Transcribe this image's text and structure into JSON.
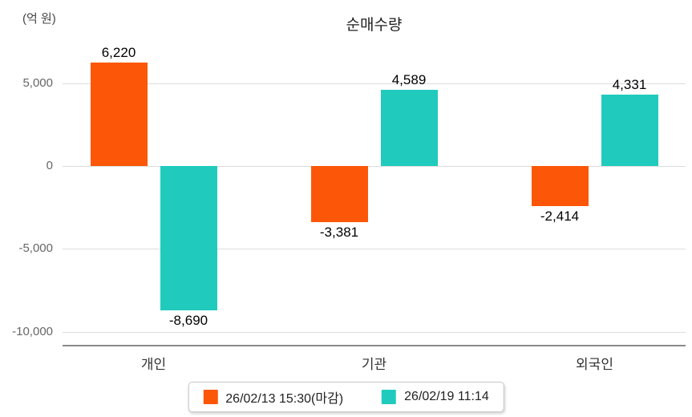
{
  "chart_data": {
    "type": "bar",
    "title": "순매수량",
    "unit_label": "(억 원)",
    "categories": [
      "개인",
      "기관",
      "외국인"
    ],
    "series": [
      {
        "name": "26/02/13 15:30(마감)",
        "color": "#FC5708",
        "values": [
          6220,
          -3381,
          -2414
        ]
      },
      {
        "name": "26/02/19 11:14",
        "color": "#20CBBD",
        "values": [
          -8690,
          4589,
          4331
        ]
      }
    ],
    "value_labels": {
      "개인": [
        "6,220",
        "-8,690"
      ],
      "기관": [
        "-3,381",
        "4,589"
      ],
      "외국인": [
        "-2,414",
        "4,331"
      ]
    },
    "y_ticks": [
      5000,
      0,
      -5000,
      -10000
    ],
    "y_tick_labels": [
      "5,000",
      "0",
      "-5,000",
      "-10,000"
    ],
    "ylim": [
      -10800,
      7500
    ],
    "grid": true,
    "legend_position": "bottom",
    "colors": {
      "gridline": "#DDDDDD",
      "axis_line": "#8A8A8A",
      "tick_text": "#666666",
      "category_text": "#333333",
      "value_text": "#000000",
      "legend_border": "#C9C9C9"
    }
  }
}
